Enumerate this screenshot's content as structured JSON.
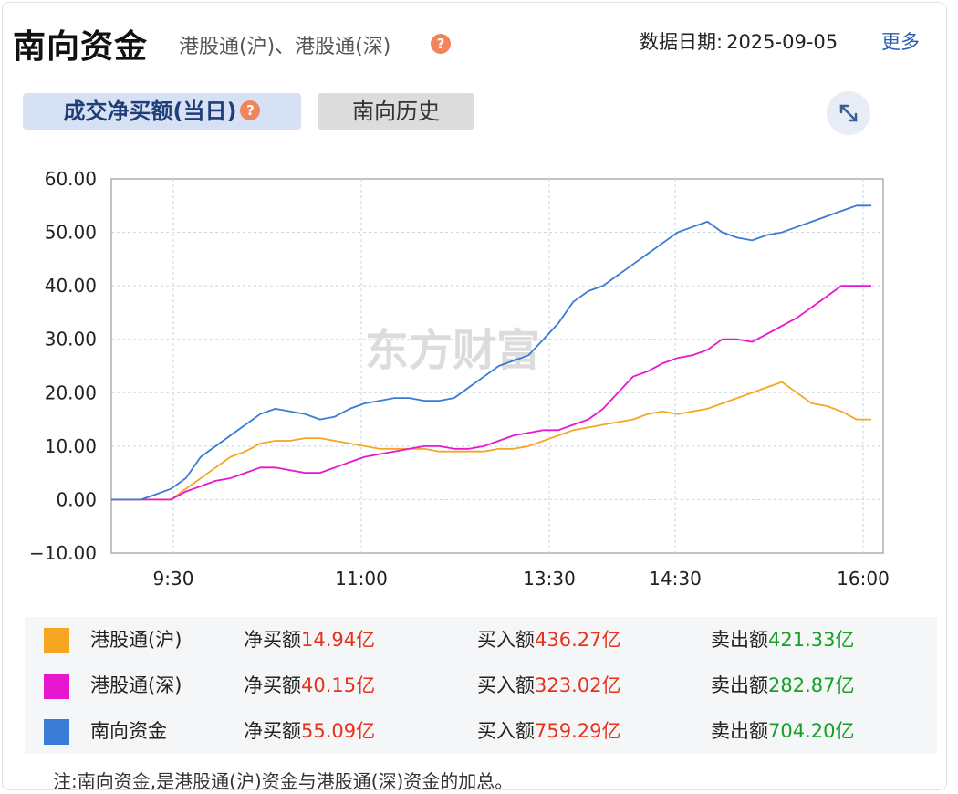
{
  "header": {
    "title": "南向资金",
    "subtitle": "港股通(沪)、港股通(深)",
    "date_label": "数据日期:",
    "date_value": "2025-09-05",
    "more_label": "更多"
  },
  "tabs": [
    {
      "label": "成交净买额(当日)",
      "active": true
    },
    {
      "label": "南向历史",
      "active": false
    }
  ],
  "icons": {
    "help": "help-icon",
    "expand": "expand-icon"
  },
  "watermark": "东方财富",
  "chart_data": {
    "type": "line",
    "x_tick_labels": [
      "9:30",
      "11:00",
      "13:30",
      "14:30",
      "16:00"
    ],
    "y_tick_labels": [
      "60.00",
      "50.00",
      "40.00",
      "30.00",
      "20.00",
      "10.00",
      "0.00",
      "−10.00"
    ],
    "ylim": [
      -10,
      60
    ],
    "grid": true,
    "series": [
      {
        "name": "港股通(沪)",
        "color": "#f5a623",
        "values": [
          0,
          0,
          0,
          0,
          0,
          2,
          4,
          6,
          8,
          9,
          10.5,
          11,
          11,
          11.5,
          11.5,
          11,
          10.5,
          10,
          9.5,
          9.5,
          9.5,
          9.5,
          9,
          9,
          9,
          9,
          9.5,
          9.5,
          10,
          11,
          12,
          13,
          13.5,
          14,
          14.5,
          15,
          16,
          16.5,
          16,
          16.5,
          17,
          18,
          19,
          20,
          21,
          22,
          20,
          18,
          17.5,
          16.5,
          15,
          15
        ]
      },
      {
        "name": "港股通(深)",
        "color": "#e716cf",
        "values": [
          0,
          0,
          0,
          0,
          0,
          1.5,
          2.5,
          3.5,
          4,
          5,
          6,
          6,
          5.5,
          5,
          5,
          6,
          7,
          8,
          8.5,
          9,
          9.5,
          10,
          10,
          9.5,
          9.5,
          10,
          11,
          12,
          12.5,
          13,
          13,
          14,
          15,
          17,
          20,
          23,
          24,
          25.5,
          26.5,
          27,
          28,
          30,
          30,
          29.5,
          31,
          32.5,
          34,
          36,
          38,
          40,
          40,
          40
        ]
      },
      {
        "name": "南向资金",
        "color": "#3a7bd5",
        "values": [
          0,
          0,
          0,
          1,
          2,
          4,
          8,
          10,
          12,
          14,
          16,
          17,
          16.5,
          16,
          15,
          15.5,
          17,
          18,
          18.5,
          19,
          19,
          18.5,
          18.5,
          19,
          21,
          23,
          25,
          26,
          27,
          30,
          33,
          37,
          39,
          40,
          42,
          44,
          46,
          48,
          50,
          51,
          52,
          50,
          49,
          48.5,
          49.5,
          50,
          51,
          52,
          53,
          54,
          55,
          55
        ]
      }
    ]
  },
  "legend": [
    {
      "name": "港股通(沪)",
      "color": "#f5a623",
      "net_label": "净买额",
      "net_value": "14.94亿",
      "buy_label": "买入额",
      "buy_value": "436.27亿",
      "sell_label": "卖出额",
      "sell_value": "421.33亿"
    },
    {
      "name": "港股通(深)",
      "color": "#e716cf",
      "net_label": "净买额",
      "net_value": "40.15亿",
      "buy_label": "买入额",
      "buy_value": "323.02亿",
      "sell_label": "卖出额",
      "sell_value": "282.87亿"
    },
    {
      "name": "南向资金",
      "color": "#3a7bd5",
      "net_label": "净买额",
      "net_value": "55.09亿",
      "buy_label": "买入额",
      "buy_value": "759.29亿",
      "sell_label": "卖出额",
      "sell_value": "704.20亿"
    }
  ],
  "note": "注:南向资金,是港股通(沪)资金与港股通(深)资金的加总。"
}
